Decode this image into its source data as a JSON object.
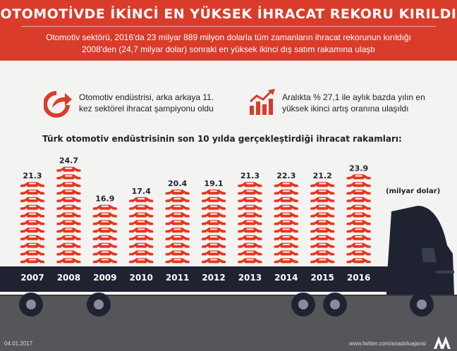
{
  "header": {
    "title": "OTOMOTİVDE İKİNCİ EN YÜKSEK İHRACAT REKORU KIRILDI",
    "subtitle_line1": "Otomotiv sektörü, 2016'da 23 milyar 889 milyon dolarla tüm zamanların ihracat rekorunun kırıldığı",
    "subtitle_line2": "2008'den (24,7 milyar dolar) sonraki en yüksek ikinci dış satım rakamına ulaştı"
  },
  "facts": [
    {
      "icon": "curved-arrow-icon",
      "text_line1": "Otomotiv endüstrisi, arka arkaya 11.",
      "text_line2": "kez sektörel ihracat şampiyonu oldu"
    },
    {
      "icon": "rising-bars-icon",
      "text_line1": "Aralıkta % 27,1 ile aylık bazda yılın en",
      "text_line2": "yüksek ikinci artış oranına ulaşıldı"
    }
  ],
  "footer": {
    "date": "04.01.2017",
    "site": "www.twitter.com/anadoluajansi",
    "logo": "AA"
  },
  "colors": {
    "accent": "#d93c2a",
    "car": "#e8341f",
    "truck": "#1f2230",
    "road": "#55555a",
    "background": "#f3f3f1"
  },
  "chart_data": {
    "type": "bar",
    "title": "Türk otomotiv endüstrisinin son 10 yılda gerçekleştirdiği ihracat rakamları:",
    "unit": "(milyar dolar)",
    "categories": [
      "2007",
      "2008",
      "2009",
      "2010",
      "2011",
      "2012",
      "2013",
      "2014",
      "2015",
      "2016"
    ],
    "values": [
      21.3,
      24.7,
      16.9,
      17.4,
      20.4,
      19.1,
      21.3,
      22.3,
      21.2,
      23.9
    ],
    "value_labels": [
      "21.3",
      "24.7",
      "16.9",
      "17.4",
      "20.4",
      "19.1",
      "21.3",
      "22.3",
      "21.2",
      "23.9"
    ],
    "bar_style": "stacked car icons",
    "grid": false
  }
}
